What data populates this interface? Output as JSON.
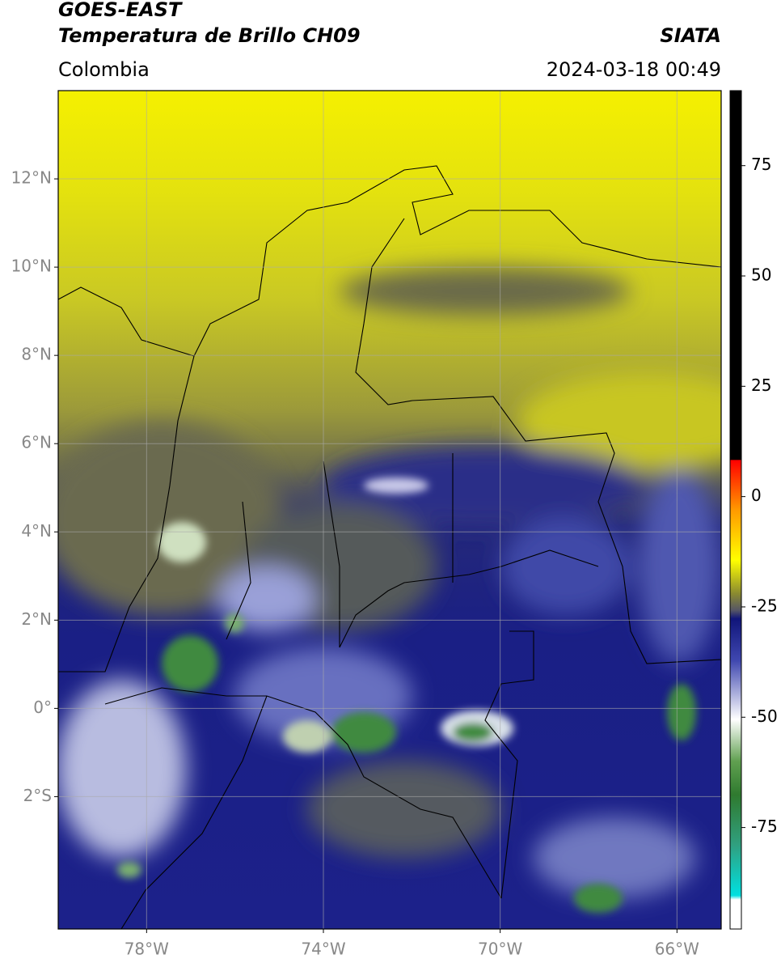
{
  "header": {
    "title": "GOES-EAST",
    "subtitle": "Temperatura de Brillo CH09",
    "source": "SIATA",
    "region": "Colombia",
    "datetime": "2024-03-18 00:49"
  },
  "map": {
    "xlim": [
      -80,
      -65
    ],
    "ylim": [
      -5,
      14
    ],
    "xticks": [
      {
        "value": -78,
        "label": "78°W"
      },
      {
        "value": -74,
        "label": "74°W"
      },
      {
        "value": -70,
        "label": "70°W"
      },
      {
        "value": -66,
        "label": "66°W"
      }
    ],
    "yticks": [
      {
        "value": 12,
        "label": "12°N"
      },
      {
        "value": 10,
        "label": "10°N"
      },
      {
        "value": 8,
        "label": "8°N"
      },
      {
        "value": 6,
        "label": "6°N"
      },
      {
        "value": 4,
        "label": "4°N"
      },
      {
        "value": 2,
        "label": "2°N"
      },
      {
        "value": 0,
        "label": "0°"
      },
      {
        "value": -2,
        "label": "2°S"
      }
    ],
    "grid": true
  },
  "colorbar": {
    "lim": [
      -98,
      92
    ],
    "ticks": [
      75,
      50,
      25,
      0,
      -25,
      -50,
      -75
    ]
  }
}
